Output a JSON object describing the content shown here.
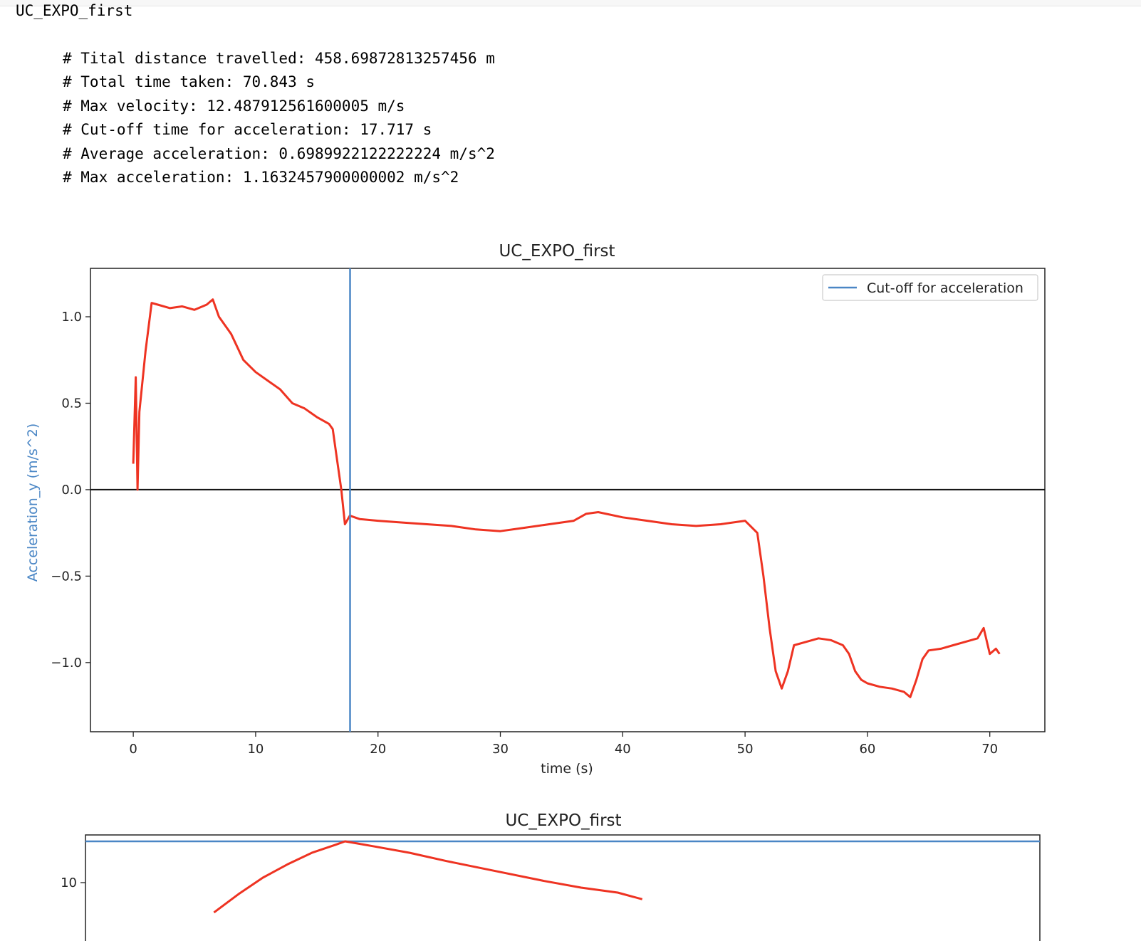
{
  "cell_header": "UC_EXPO_first",
  "stats": [
    "# Tital distance travelled: 458.69872813257456 m",
    "# Total time taken: 70.843 s",
    "# Max velocity: 12.487912561600005 m/s",
    "# Cut-off time for acceleration: 17.717 s",
    "# Average acceleration: 0.6989922122222224 m/s^2",
    "# Max acceleration: 1.1632457900000002 m/s^2"
  ],
  "chart_data": [
    {
      "type": "line",
      "title": "UC_EXPO_first",
      "xlabel": "time (s)",
      "ylabel": "Acceleration_y (m/s^2)",
      "xlim": [
        -3.5,
        74.5
      ],
      "ylim": [
        -1.4,
        1.28
      ],
      "xticks": [
        0,
        10,
        20,
        30,
        40,
        50,
        60,
        70
      ],
      "xtick_labels": [
        "0",
        "10",
        "20",
        "30",
        "40",
        "50",
        "60",
        "70"
      ],
      "yticks": [
        1.0,
        0.5,
        0.0,
        -0.5,
        -1.0
      ],
      "ytick_labels": [
        "1.0",
        "0.5",
        "0.0",
        "−0.5",
        "−1.0"
      ],
      "legend": {
        "placement": "upper-right",
        "entries": [
          {
            "label": "Cut-off for acceleration",
            "color": "#4a86c5"
          }
        ]
      },
      "cutoff_x": 17.717,
      "zero_line_y": 0,
      "series": [
        {
          "color": "#ee3322",
          "x": [
            0,
            0.2,
            0.35,
            0.5,
            1.0,
            1.5,
            2.0,
            3.0,
            4.0,
            5.0,
            6.0,
            6.5,
            7.0,
            8.0,
            9.0,
            10.0,
            11.0,
            12.0,
            13.0,
            14.0,
            15.0,
            16.0,
            16.3,
            16.6,
            17.0,
            17.3,
            17.7,
            18.5,
            20.0,
            22.0,
            24.0,
            26.0,
            28.0,
            30.0,
            32.0,
            34.0,
            36.0,
            37.0,
            38.0,
            40.0,
            42.0,
            44.0,
            46.0,
            48.0,
            50.0,
            51.0,
            51.5,
            52.0,
            52.5,
            53.0,
            53.5,
            54.0,
            55.0,
            56.0,
            57.0,
            58.0,
            58.5,
            59.0,
            59.5,
            60.0,
            61.0,
            62.0,
            63.0,
            63.5,
            64.0,
            64.5,
            65.0,
            66.0,
            67.0,
            68.0,
            69.0,
            69.5,
            70.0,
            70.5,
            70.8
          ],
          "y": [
            0.15,
            0.65,
            0.0,
            0.45,
            0.8,
            1.08,
            1.07,
            1.05,
            1.06,
            1.04,
            1.07,
            1.1,
            1.0,
            0.9,
            0.75,
            0.68,
            0.63,
            0.58,
            0.5,
            0.47,
            0.42,
            0.38,
            0.35,
            0.2,
            0.0,
            -0.2,
            -0.15,
            -0.17,
            -0.18,
            -0.19,
            -0.2,
            -0.21,
            -0.23,
            -0.24,
            -0.22,
            -0.2,
            -0.18,
            -0.14,
            -0.13,
            -0.16,
            -0.18,
            -0.2,
            -0.21,
            -0.2,
            -0.18,
            -0.25,
            -0.5,
            -0.8,
            -1.05,
            -1.15,
            -1.05,
            -0.9,
            -0.88,
            -0.86,
            -0.87,
            -0.9,
            -0.95,
            -1.05,
            -1.1,
            -1.12,
            -1.14,
            -1.15,
            -1.17,
            -1.2,
            -1.1,
            -0.98,
            -0.93,
            -0.92,
            -0.9,
            -0.88,
            -0.86,
            -0.8,
            -0.95,
            -0.92,
            -0.95
          ]
        }
      ]
    },
    {
      "type": "line",
      "title": "UC_EXPO_first",
      "xlim": [
        -3.5,
        74.5
      ],
      "yticks": [
        10
      ],
      "ytick_labels": [
        "10"
      ],
      "series": [
        {
          "color": "#ee3322",
          "x": [
            7.0,
            9.0,
            11.0,
            13.0,
            15.0,
            17.0,
            17.717,
            20.0,
            23.0,
            26.0,
            30.0,
            34.0,
            37.0,
            40.0,
            42.0
          ],
          "y": [
            8.2,
            9.3,
            10.3,
            11.1,
            11.8,
            12.3,
            12.49,
            12.2,
            11.8,
            11.3,
            10.7,
            10.1,
            9.7,
            9.4,
            9.0
          ]
        }
      ],
      "hline_y": 12.49
    }
  ]
}
